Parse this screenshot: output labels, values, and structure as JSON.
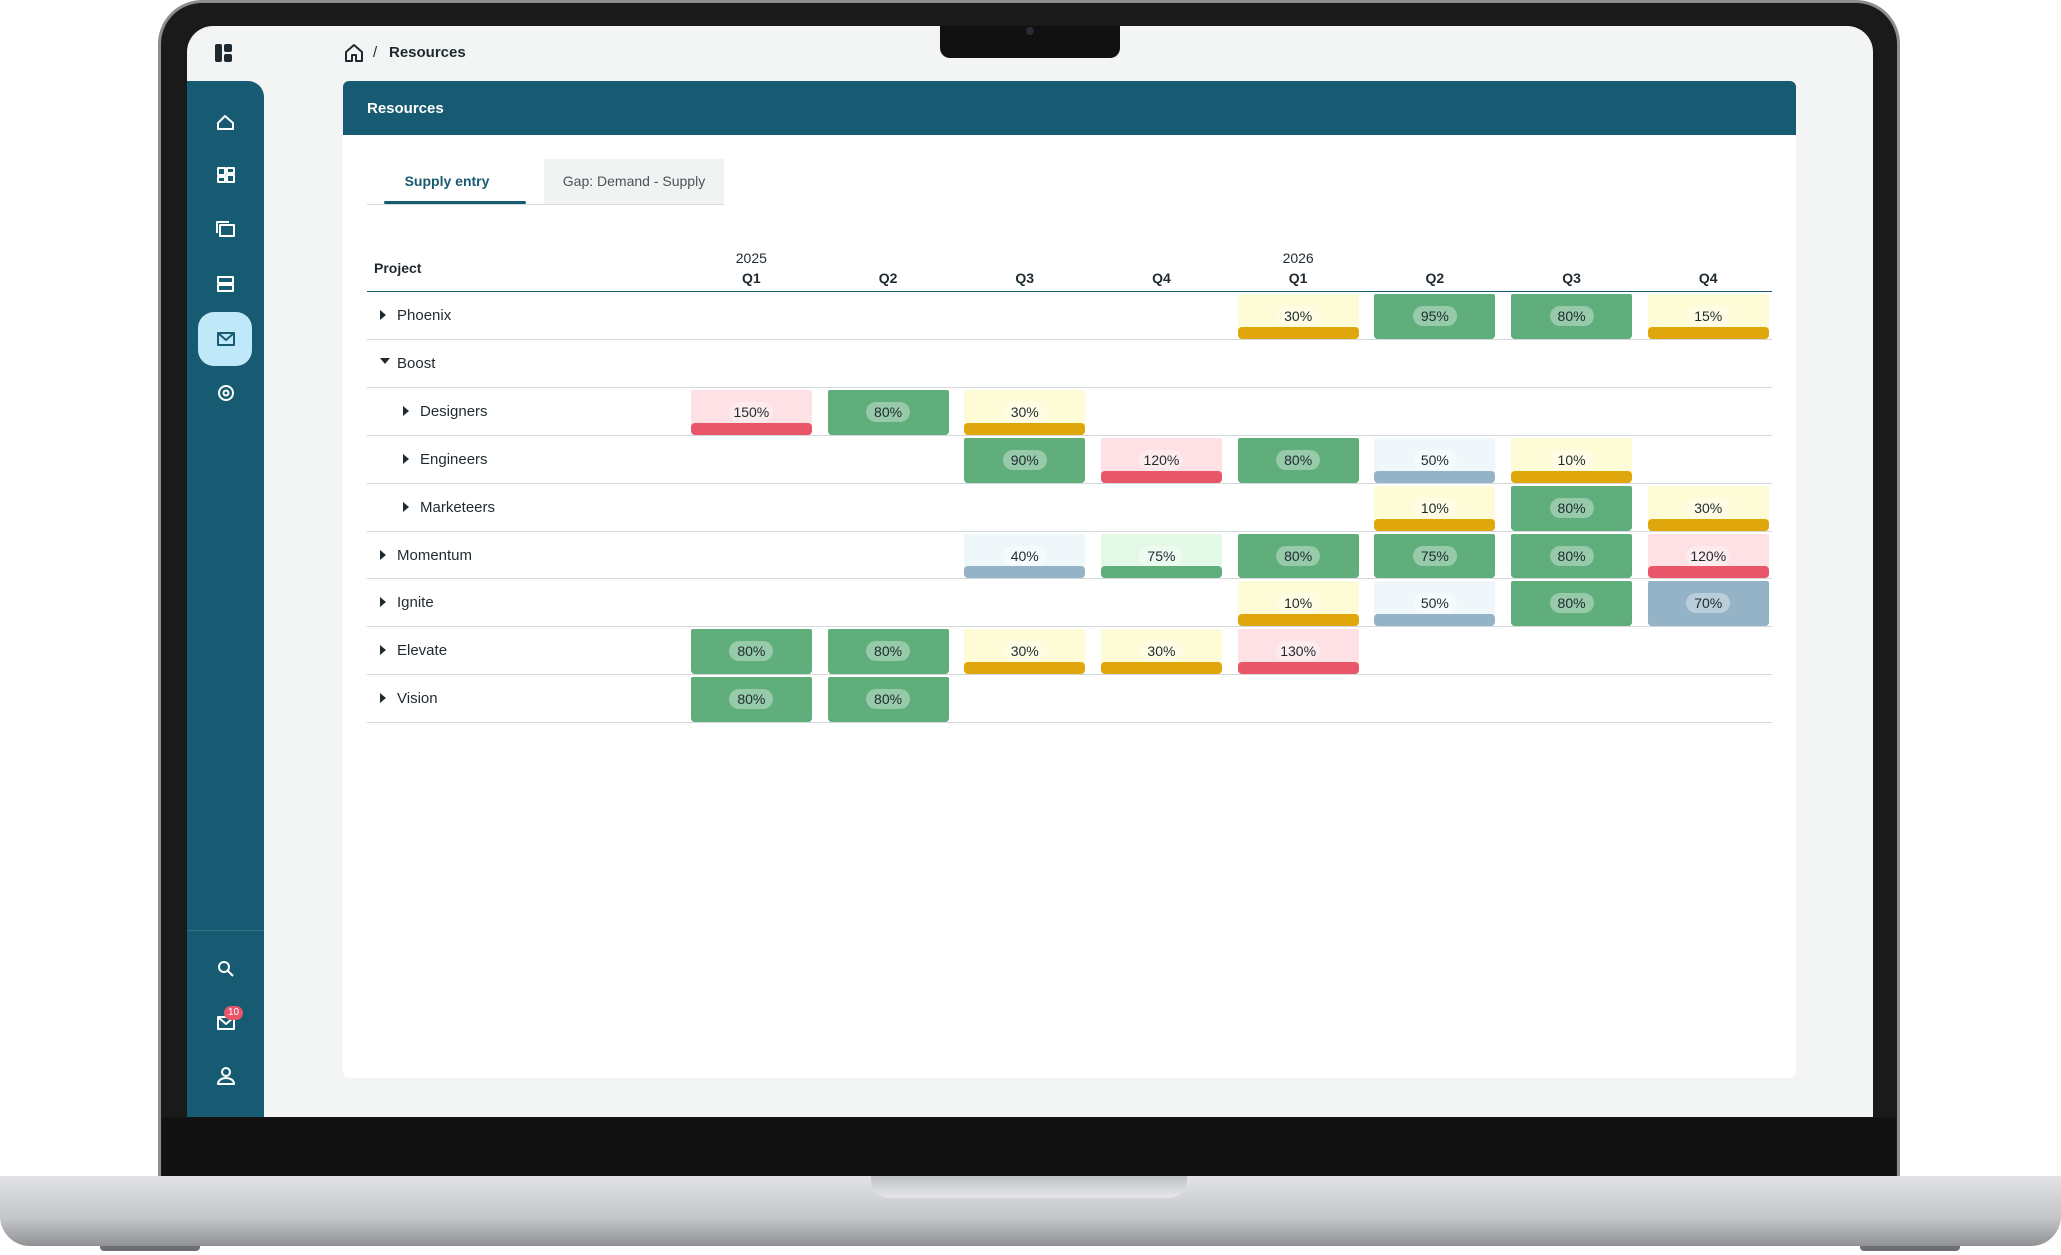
{
  "breadcrumb": {
    "current": "Resources"
  },
  "sidebar": {
    "badge": "10"
  },
  "card": {
    "title": "Resources",
    "tabs": [
      {
        "label": "Supply entry",
        "active": true
      },
      {
        "label": "Gap: Demand - Supply",
        "active": false
      }
    ]
  },
  "table": {
    "project_header": "Project",
    "columns": [
      {
        "year": "2025",
        "quarter": "Q1"
      },
      {
        "quarter": "Q2"
      },
      {
        "quarter": "Q3"
      },
      {
        "quarter": "Q4"
      },
      {
        "year": "2026",
        "quarter": "Q1"
      },
      {
        "quarter": "Q2"
      },
      {
        "quarter": "Q3"
      },
      {
        "quarter": "Q4"
      }
    ],
    "rows": [
      {
        "name": "Phoenix",
        "level": 0,
        "expanded": false,
        "cells": [
          null,
          null,
          null,
          null,
          {
            "label": "30%",
            "background": "#fefcd6",
            "bar": "#dfa70c"
          },
          {
            "label": "95%",
            "background": "#5fae7b",
            "bar": "#5fae7b"
          },
          {
            "label": "80%",
            "background": "#5fae7b",
            "bar": "#5fae7b"
          },
          {
            "label": "15%",
            "background": "#fefcd6",
            "bar": "#dfa70c"
          }
        ]
      },
      {
        "name": "Boost",
        "level": 0,
        "expanded": true,
        "cells": [
          null,
          null,
          null,
          null,
          null,
          null,
          null,
          null
        ]
      },
      {
        "name": "Designers",
        "level": 1,
        "expanded": false,
        "cells": [
          {
            "label": "150%",
            "background": "#fde1e5",
            "bar": "#e9566a"
          },
          {
            "label": "80%",
            "background": "#5fae7b",
            "bar": "#5fae7b"
          },
          {
            "label": "30%",
            "background": "#fefcd6",
            "bar": "#dfa70c"
          },
          null,
          null,
          null,
          null,
          null
        ]
      },
      {
        "name": "Engineers",
        "level": 1,
        "expanded": false,
        "cells": [
          null,
          null,
          {
            "label": "90%",
            "background": "#5fae7b",
            "bar": "#5fae7b"
          },
          {
            "label": "120%",
            "background": "#fde1e5",
            "bar": "#e9566a"
          },
          {
            "label": "80%",
            "background": "#5fae7b",
            "bar": "#5fae7b"
          },
          {
            "label": "50%",
            "background": "#f0f7fb",
            "bar": "#94b3c7"
          },
          {
            "label": "10%",
            "background": "#fefcd6",
            "bar": "#dfa70c"
          },
          null
        ]
      },
      {
        "name": "Marketeers",
        "level": 1,
        "expanded": false,
        "cells": [
          null,
          null,
          null,
          null,
          null,
          {
            "label": "10%",
            "background": "#fefcd6",
            "bar": "#dfa70c"
          },
          {
            "label": "80%",
            "background": "#5fae7b",
            "bar": "#5fae7b"
          },
          {
            "label": "30%",
            "background": "#fefcd6",
            "bar": "#dfa70c"
          }
        ]
      },
      {
        "name": "Momentum",
        "level": 0,
        "expanded": false,
        "cells": [
          null,
          null,
          {
            "label": "40%",
            "background": "#f0f7fb",
            "bar": "#94b3c7"
          },
          {
            "label": "75%",
            "background": "#e4f8e7",
            "bar": "#5fae7b"
          },
          {
            "label": "80%",
            "background": "#5fae7b",
            "bar": "#5fae7b"
          },
          {
            "label": "75%",
            "background": "#5fae7b",
            "bar": "#5fae7b"
          },
          {
            "label": "80%",
            "background": "#5fae7b",
            "bar": "#5fae7b"
          },
          {
            "label": "120%",
            "background": "#fde1e5",
            "bar": "#e9566a"
          }
        ]
      },
      {
        "name": "Ignite",
        "level": 0,
        "expanded": false,
        "cells": [
          null,
          null,
          null,
          null,
          {
            "label": "10%",
            "background": "#fefcd6",
            "bar": "#dfa70c"
          },
          {
            "label": "50%",
            "background": "#f0f7fb",
            "bar": "#94b3c7"
          },
          {
            "label": "80%",
            "background": "#5fae7b",
            "bar": "#5fae7b"
          },
          {
            "label": "70%",
            "background": "#94b3c7",
            "bar": "#94b3c7"
          }
        ]
      },
      {
        "name": "Elevate",
        "level": 0,
        "expanded": false,
        "cells": [
          {
            "label": "80%",
            "background": "#5fae7b",
            "bar": "#5fae7b"
          },
          {
            "label": "80%",
            "background": "#5fae7b",
            "bar": "#5fae7b"
          },
          {
            "label": "30%",
            "background": "#fefcd6",
            "bar": "#dfa70c"
          },
          {
            "label": "30%",
            "background": "#fefcd6",
            "bar": "#dfa70c"
          },
          {
            "label": "130%",
            "background": "#fde1e5",
            "bar": "#e9566a"
          },
          null,
          null,
          null
        ]
      },
      {
        "name": "Vision",
        "level": 0,
        "expanded": false,
        "cells": [
          {
            "label": "80%",
            "background": "#5fae7b",
            "bar": "#5fae7b"
          },
          {
            "label": "80%",
            "background": "#5fae7b",
            "bar": "#5fae7b"
          },
          null,
          null,
          null,
          null,
          null,
          null
        ]
      }
    ]
  }
}
